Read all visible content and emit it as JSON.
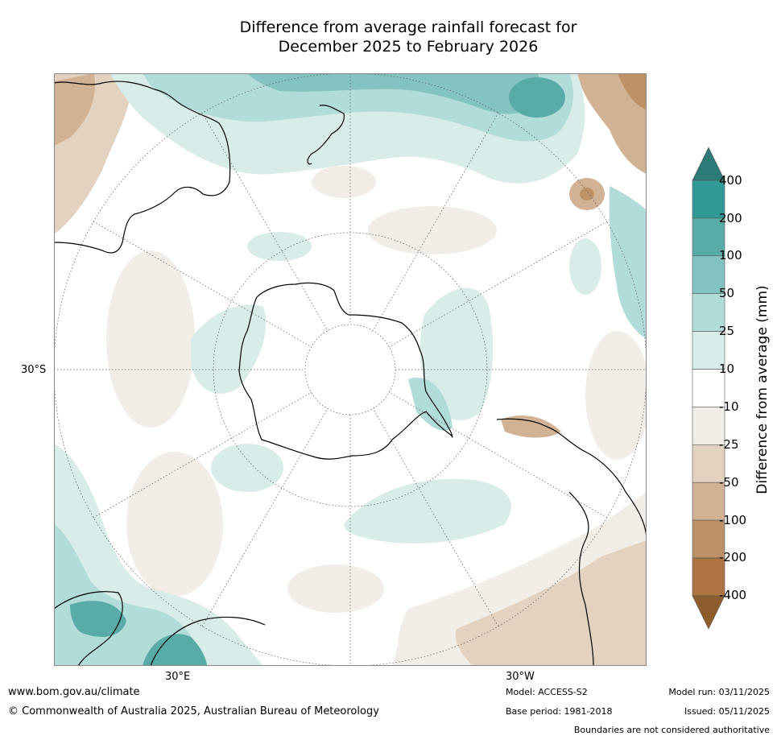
{
  "title": {
    "line1": "Difference from average rainfall forecast for",
    "line2": "December 2025 to February 2026"
  },
  "map": {
    "projection": "south-polar stereographic",
    "lat_label": "30°S",
    "lon_labels": [
      "30°E",
      "30°W"
    ]
  },
  "colorbar": {
    "title": "Difference from average (mm)",
    "ticks": [
      "400",
      "200",
      "100",
      "50",
      "25",
      "10",
      "-10",
      "-25",
      "-50",
      "-100",
      "-200",
      "-400"
    ],
    "colors": [
      "#2b7b78",
      "#329a96",
      "#59aba8",
      "#83c3c1",
      "#b2dcda",
      "#d8ecea",
      "#ffffff",
      "#f2ede6",
      "#e4d2c0",
      "#d1b294",
      "#bd9267",
      "#ac7441",
      "#8f5c2b"
    ]
  },
  "footer": {
    "url": "www.bom.gov.au/climate",
    "copyright": "© Commonwealth of Australia 2025, Australian Bureau of Meteorology",
    "model": "Model: ACCESS-S2",
    "base_period": "Base period: 1981-2018",
    "model_run": "Model run: 03/11/2025",
    "issued": "Issued: 05/11/2025",
    "boundaries": "Boundaries are not considered authoritative"
  }
}
